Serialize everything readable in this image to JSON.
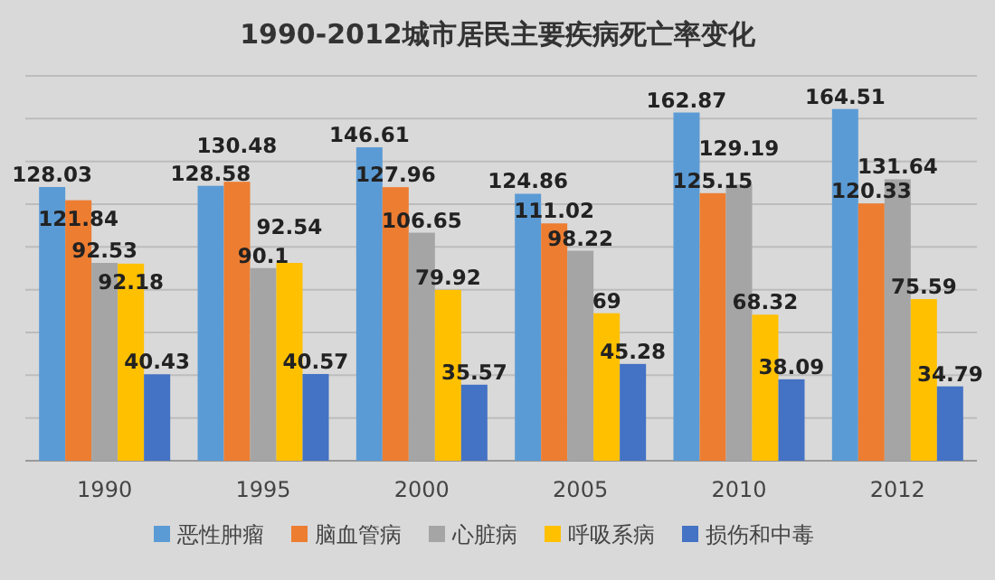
{
  "chart_data": {
    "type": "bar",
    "title": "1990-2012城市居民主要疾病死亡率变化",
    "categories": [
      "1990",
      "1995",
      "2000",
      "2005",
      "2010",
      "2012"
    ],
    "series": [
      {
        "name": "恶性肿瘤",
        "color": "#5b9bd5",
        "values": [
          128.03,
          128.58,
          146.61,
          124.86,
          162.87,
          164.51
        ]
      },
      {
        "name": "脑血管病",
        "color": "#ed7d31",
        "values": [
          121.84,
          130.48,
          127.96,
          111.02,
          125.15,
          120.33
        ]
      },
      {
        "name": "心脏病",
        "color": "#a5a5a5",
        "values": [
          92.53,
          90.1,
          106.65,
          98.22,
          129.19,
          131.64
        ]
      },
      {
        "name": "呼吸系病",
        "color": "#ffc000",
        "values": [
          92.18,
          92.54,
          79.92,
          69,
          68.32,
          75.59
        ]
      },
      {
        "name": "损伤和中毒",
        "color": "#4472c4",
        "values": [
          40.43,
          40.57,
          35.57,
          45.28,
          38.09,
          34.79
        ]
      }
    ],
    "ylim": [
      0,
      180
    ],
    "yticks": [
      {
        "value": 0,
        "label": null
      },
      {
        "value": 20,
        "label": null
      },
      {
        "value": 40,
        "label": null
      },
      {
        "value": 60,
        "label": null
      },
      {
        "value": 80,
        "label": null
      },
      {
        "value": 100,
        "label": null
      },
      {
        "value": 120,
        "label": null
      },
      {
        "value": 140,
        "label": null
      },
      {
        "value": 160,
        "label": null
      },
      {
        "value": 180,
        "label": null
      }
    ],
    "grid": "y",
    "legend": "bottom",
    "data_labels": true
  }
}
